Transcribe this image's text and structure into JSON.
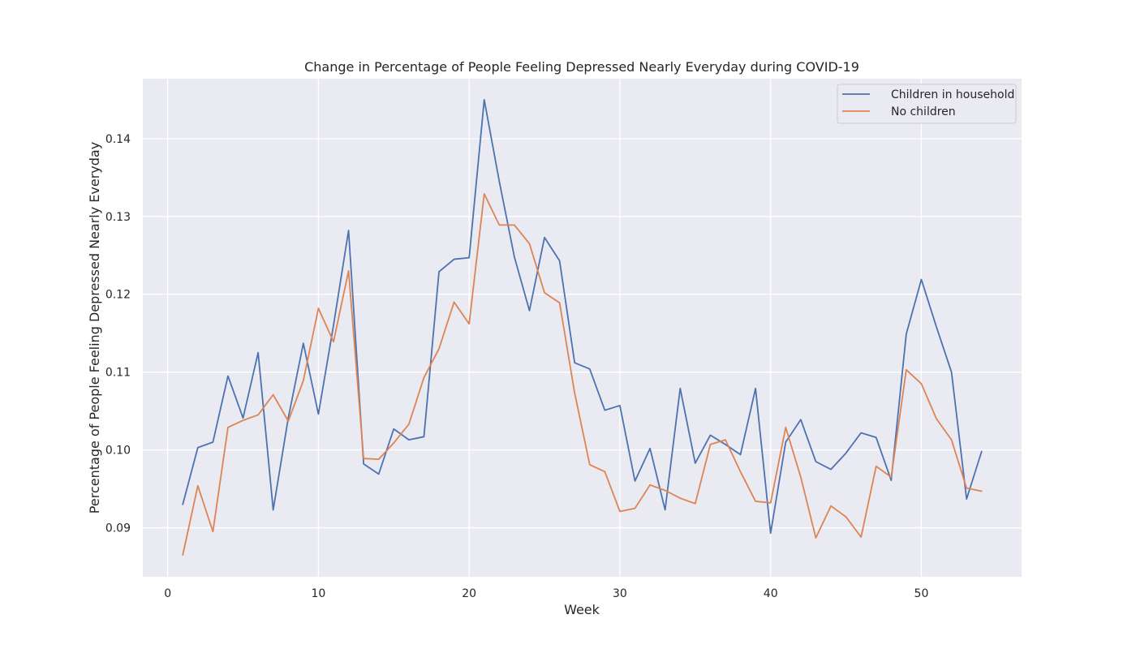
{
  "chart_data": {
    "type": "line",
    "title": "Change in Percentage of People Feeling Depressed Nearly Everyday during COVID-19",
    "xlabel": "Week",
    "ylabel": "Percentage of People Feeling Depressed Nearly Everyday",
    "xlim": [
      -1.65,
      56.65
    ],
    "ylim": [
      0.0837,
      0.1477
    ],
    "xticks": [
      0,
      10,
      20,
      30,
      40,
      50
    ],
    "xtick_labels": [
      "0",
      "10",
      "20",
      "30",
      "40",
      "50"
    ],
    "yticks": [
      0.09,
      0.1,
      0.11,
      0.12,
      0.13,
      0.14
    ],
    "ytick_labels": [
      "0.09",
      "0.10",
      "0.11",
      "0.12",
      "0.13",
      "0.14"
    ],
    "grid": true,
    "background": "#eaeaf2",
    "legend_position": "top-right",
    "x": [
      1,
      2,
      3,
      4,
      5,
      6,
      7,
      8,
      9,
      10,
      11,
      12,
      13,
      14,
      15,
      16,
      17,
      18,
      19,
      20,
      21,
      22,
      23,
      24,
      25,
      26,
      27,
      28,
      29,
      30,
      31,
      32,
      33,
      34,
      35,
      36,
      37,
      38,
      39,
      40,
      41,
      42,
      43,
      44,
      45,
      46,
      47,
      48,
      49,
      50,
      51,
      52,
      53,
      54
    ],
    "series": [
      {
        "name": "Children in household",
        "color": "#4c72b0",
        "values": [
          0.093,
          0.1003,
          0.101,
          0.1095,
          0.1041,
          0.1125,
          0.0923,
          0.1041,
          0.1137,
          0.1046,
          0.116,
          0.1282,
          0.0982,
          0.0969,
          0.1027,
          0.1013,
          0.1017,
          0.1229,
          0.1245,
          0.1247,
          0.145,
          0.1345,
          0.1248,
          0.1179,
          0.1273,
          0.1243,
          0.1112,
          0.1104,
          0.1051,
          0.1057,
          0.096,
          0.1002,
          0.0923,
          0.1079,
          0.0983,
          0.1019,
          0.1007,
          0.0994,
          0.1079,
          0.0893,
          0.101,
          0.1039,
          0.0985,
          0.0975,
          0.0996,
          0.1022,
          0.1016,
          0.0961,
          0.1149,
          0.1219,
          0.1158,
          0.11,
          0.0937,
          0.0998
        ]
      },
      {
        "name": "No children",
        "color": "#dd8452",
        "values": [
          0.0865,
          0.0954,
          0.0895,
          0.1029,
          0.1038,
          0.1045,
          0.1071,
          0.1037,
          0.1089,
          0.1182,
          0.1139,
          0.123,
          0.0989,
          0.0988,
          0.1009,
          0.1033,
          0.1093,
          0.113,
          0.119,
          0.1162,
          0.1329,
          0.1289,
          0.1289,
          0.1265,
          0.1202,
          0.1189,
          0.1073,
          0.0981,
          0.0972,
          0.0921,
          0.0925,
          0.0955,
          0.0948,
          0.0938,
          0.0931,
          0.1007,
          0.1013,
          0.0972,
          0.0934,
          0.0932,
          0.1029,
          0.0965,
          0.0887,
          0.0928,
          0.0914,
          0.0888,
          0.0979,
          0.0965,
          0.1103,
          0.1085,
          0.104,
          0.1013,
          0.0951,
          0.0947
        ]
      }
    ]
  }
}
